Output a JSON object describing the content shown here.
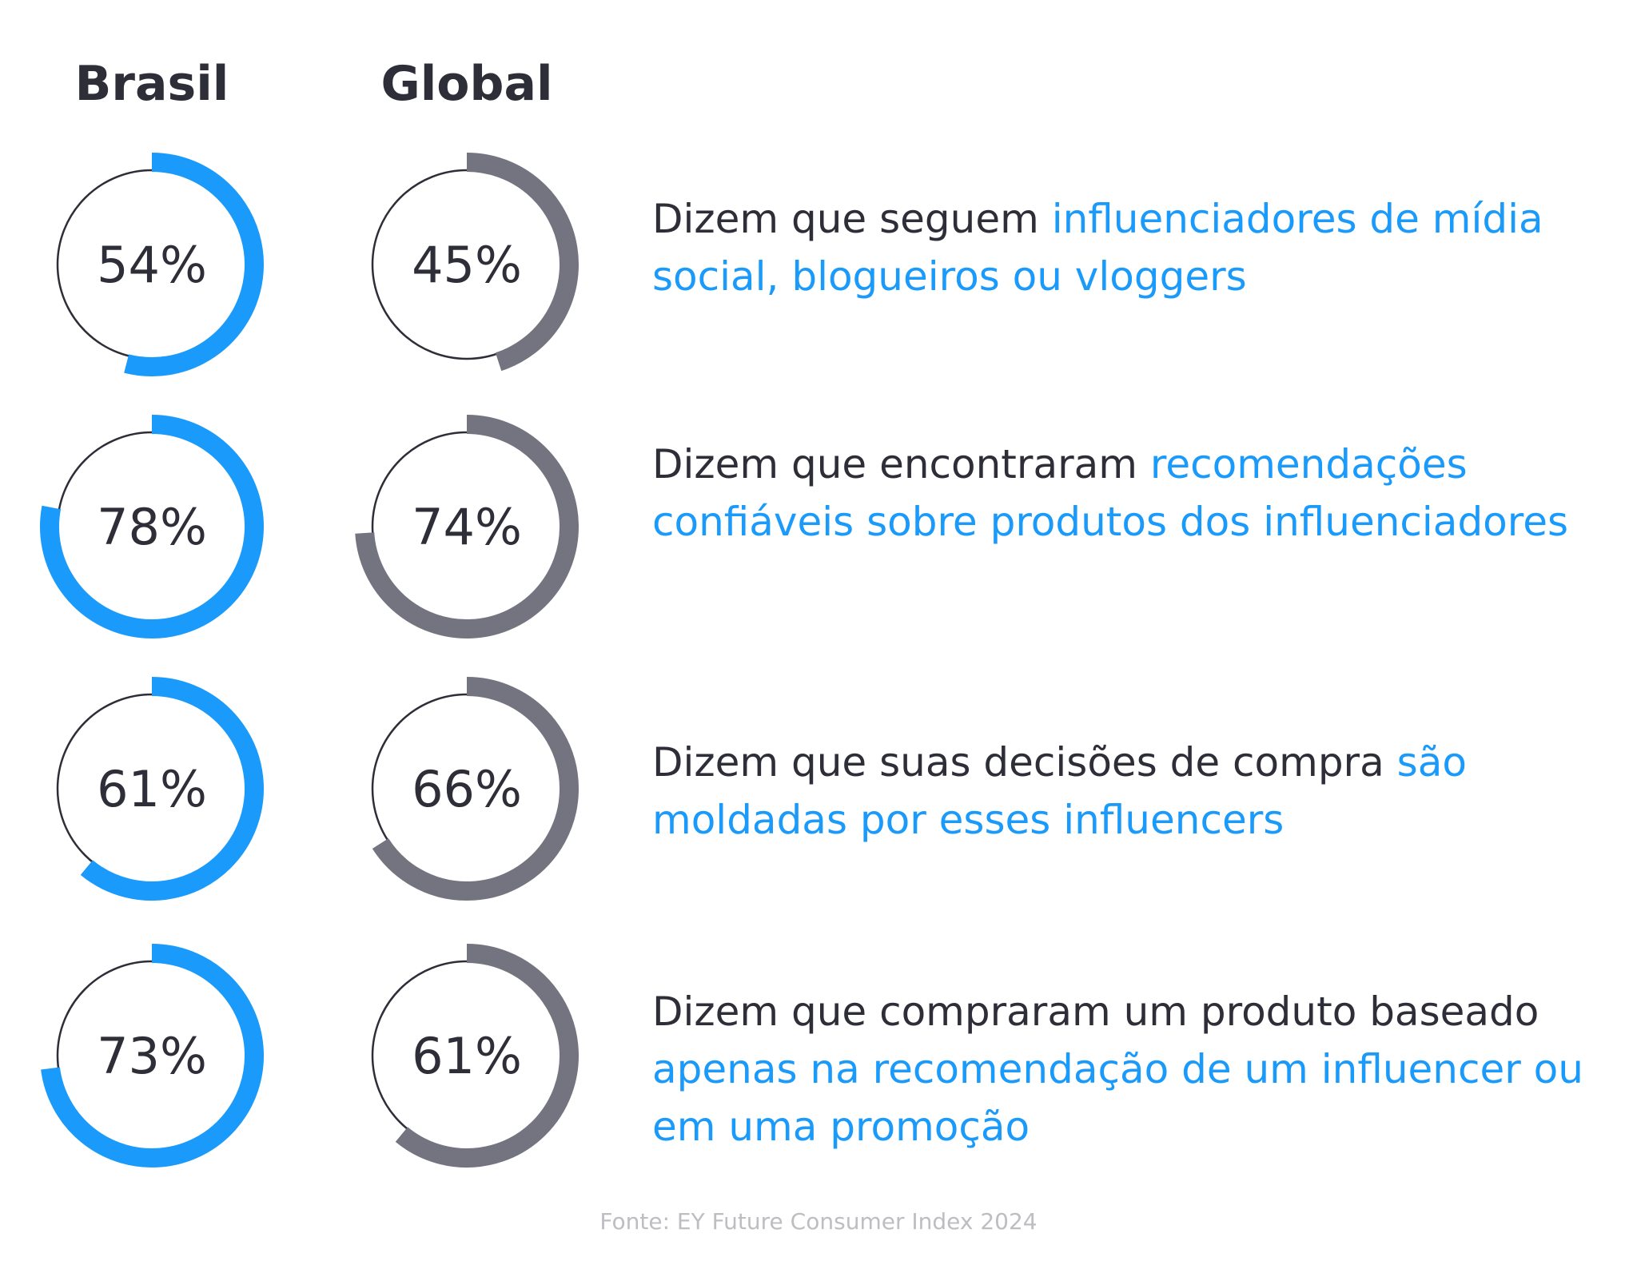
{
  "chart_data": {
    "type": "donut",
    "series_labels": [
      "Brasil",
      "Global"
    ],
    "colors": {
      "Brasil": "#1a9afa",
      "Global": "#747480",
      "track": "#2e2e38"
    },
    "rows": [
      {
        "brasil": 54,
        "global": 45,
        "brasil_label": "54%",
        "global_label": "45%",
        "text": "Dizem que seguem ",
        "highlight": "influenciadores de mídia social, blogueiros ou vloggers"
      },
      {
        "brasil": 78,
        "global": 74,
        "brasil_label": "78%",
        "global_label": "74%",
        "text": "Dizem que encontraram ",
        "highlight": "recomendações confiáveis sobre produtos dos influenciadores"
      },
      {
        "brasil": 61,
        "global": 66,
        "brasil_label": "61%",
        "global_label": "66%",
        "text": "Dizem que suas decisões de compra ",
        "highlight": "são moldadas por esses influencers"
      },
      {
        "brasil": 73,
        "global": 61,
        "brasil_label": "73%",
        "global_label": "61%",
        "text": "Dizem que compraram um produto baseado ",
        "highlight": "apenas na recomendação de um influencer ou em uma promoção"
      }
    ],
    "source": "Fonte: EY Future Consumer Index 2024"
  }
}
